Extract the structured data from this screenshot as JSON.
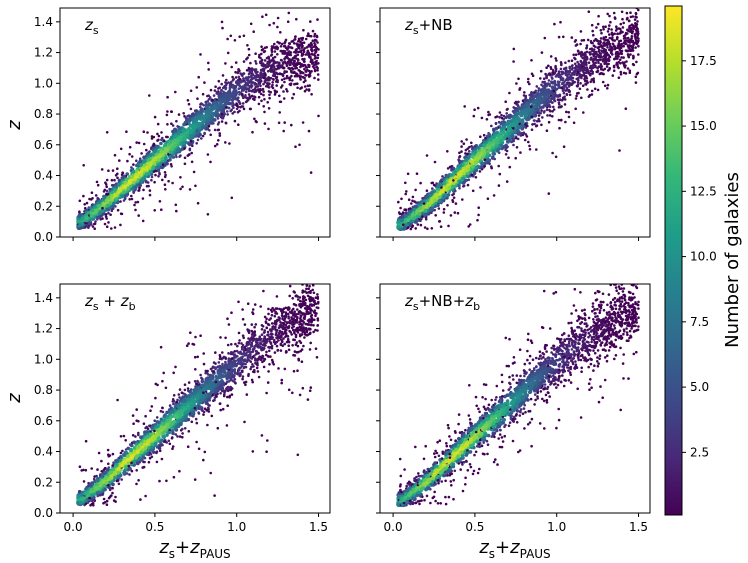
{
  "figure": {
    "colorbar": {
      "label": "Number of galaxies",
      "ticks": [
        2.5,
        5.0,
        7.5,
        10.0,
        12.5,
        15.0,
        17.5
      ],
      "tick_labels": [
        "2.5",
        "5.0",
        "7.5",
        "10.0",
        "12.5",
        "15.0",
        "17.5"
      ],
      "min": 0.1,
      "max": 19.6,
      "colormap": "viridis",
      "colors": [
        "#440154",
        "#482878",
        "#3e4989",
        "#31688e",
        "#26828e",
        "#1f9e89",
        "#35b779",
        "#6ece58",
        "#b5de2b",
        "#fde725"
      ]
    }
  },
  "chart_data": [
    {
      "type": "scatter",
      "panel_label": "z_s",
      "xlabel": "",
      "ylabel": "z",
      "xlim": [
        -0.08,
        1.57
      ],
      "ylim": [
        0.0,
        1.49
      ],
      "xticks": [
        0.0,
        0.5,
        1.0,
        1.5
      ],
      "yticks": [
        0.0,
        0.2,
        0.4,
        0.6,
        0.8,
        1.0,
        1.2,
        1.4
      ],
      "xtick_labels": [],
      "ytick_labels": [
        "0.0",
        "0.2",
        "0.4",
        "0.6",
        "0.8",
        "1.0",
        "1.2",
        "1.4"
      ],
      "density_trend": {
        "x": [
          0.05,
          0.2,
          0.35,
          0.5,
          0.7,
          0.9,
          1.1,
          1.3,
          1.5
        ],
        "y": [
          0.1,
          0.22,
          0.36,
          0.5,
          0.68,
          0.86,
          1.03,
          1.14,
          1.18
        ]
      },
      "peak_color_region": {
        "x": 0.37,
        "y": 0.36
      }
    },
    {
      "type": "scatter",
      "panel_label": "z_s+NB",
      "xlabel": "",
      "ylabel": "",
      "xlim": [
        -0.08,
        1.57
      ],
      "ylim": [
        0.0,
        1.49
      ],
      "xticks": [
        0.0,
        0.5,
        1.0,
        1.5
      ],
      "yticks": [
        0.0,
        0.2,
        0.4,
        0.6,
        0.8,
        1.0,
        1.2,
        1.4
      ],
      "xtick_labels": [],
      "ytick_labels": [],
      "density_trend": {
        "x": [
          0.05,
          0.2,
          0.35,
          0.5,
          0.7,
          0.9,
          1.1,
          1.3,
          1.5
        ],
        "y": [
          0.08,
          0.2,
          0.35,
          0.5,
          0.69,
          0.89,
          1.06,
          1.2,
          1.3
        ]
      },
      "peak_color_region": {
        "x": 0.36,
        "y": 0.35
      }
    },
    {
      "type": "scatter",
      "panel_label": "z_s + z_b",
      "xlabel": "z_s+z_PAUS",
      "ylabel": "z",
      "xlim": [
        -0.08,
        1.57
      ],
      "ylim": [
        0.0,
        1.49
      ],
      "xticks": [
        0.0,
        0.5,
        1.0,
        1.5
      ],
      "yticks": [
        0.0,
        0.2,
        0.4,
        0.6,
        0.8,
        1.0,
        1.2,
        1.4
      ],
      "xtick_labels": [
        "0.0",
        "0.5",
        "1.0",
        "1.5"
      ],
      "ytick_labels": [
        "0.0",
        "0.2",
        "0.4",
        "0.6",
        "0.8",
        "1.0",
        "1.2",
        "1.4"
      ],
      "density_trend": {
        "x": [
          0.05,
          0.2,
          0.35,
          0.5,
          0.7,
          0.9,
          1.1,
          1.3,
          1.5
        ],
        "y": [
          0.09,
          0.21,
          0.36,
          0.5,
          0.69,
          0.88,
          1.06,
          1.22,
          1.34
        ]
      },
      "peak_color_region": {
        "x": 0.36,
        "y": 0.36
      }
    },
    {
      "type": "scatter",
      "panel_label": "z_s+NB+z_b",
      "xlabel": "z_s+z_PAUS",
      "ylabel": "",
      "xlim": [
        -0.08,
        1.57
      ],
      "ylim": [
        0.0,
        1.49
      ],
      "xticks": [
        0.0,
        0.5,
        1.0,
        1.5
      ],
      "yticks": [
        0.0,
        0.2,
        0.4,
        0.6,
        0.8,
        1.0,
        1.2,
        1.4
      ],
      "xtick_labels": [
        "0.0",
        "0.5",
        "1.0",
        "1.5"
      ],
      "ytick_labels": [],
      "density_trend": {
        "x": [
          0.05,
          0.2,
          0.35,
          0.5,
          0.7,
          0.9,
          1.1,
          1.3,
          1.5
        ],
        "y": [
          0.08,
          0.2,
          0.35,
          0.5,
          0.69,
          0.89,
          1.06,
          1.22,
          1.34
        ]
      },
      "peak_color_region": {
        "x": 0.36,
        "y": 0.36
      }
    }
  ]
}
